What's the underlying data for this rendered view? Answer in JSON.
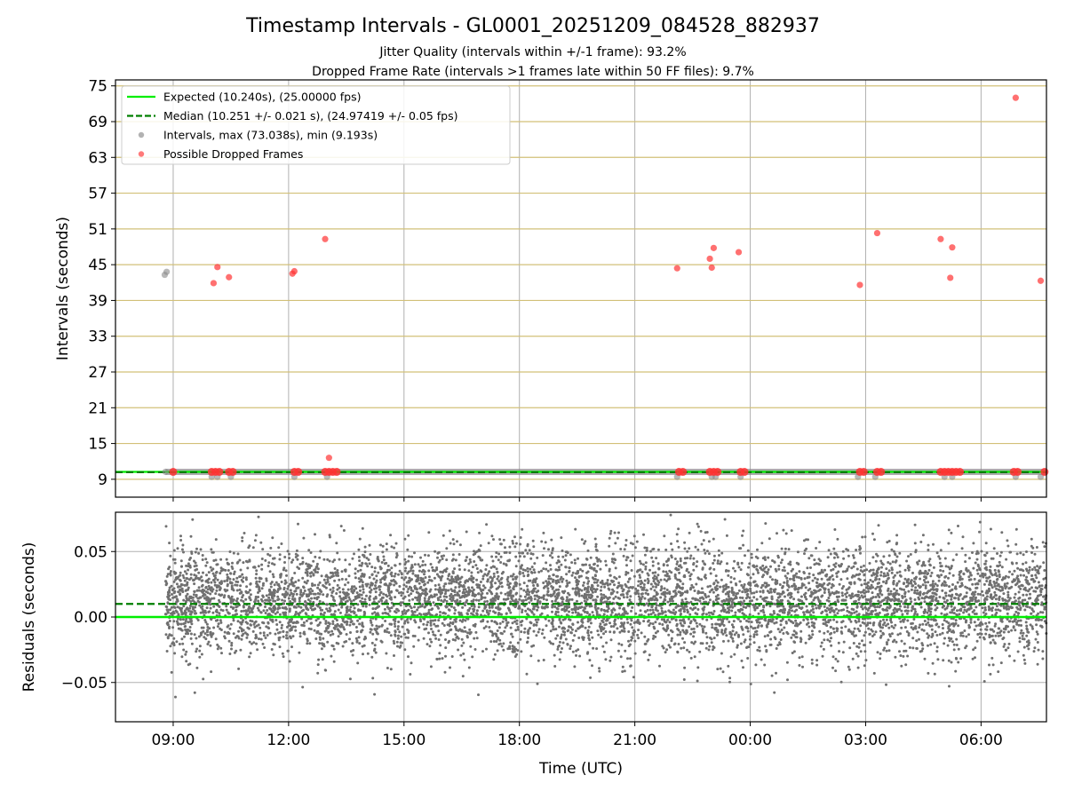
{
  "page": {
    "title": "Timestamp Intervals - GL0001_20251209_084528_882937",
    "subtitle_1": "Jitter Quality (intervals within +/-1 frame): 93.2%",
    "subtitle_2": "Dropped Frame Rate (intervals >1 frames late within 50 FF files): 9.7%"
  },
  "colors": {
    "expected": "#00ee00",
    "median": "#007f00",
    "intervals": "#888888",
    "dropped": "#ff3333",
    "residuals": "#707070",
    "grid": "#b0b0b0",
    "hgrid_top": "#d2c078"
  },
  "chart_data": [
    {
      "type": "scatter",
      "panel": "intervals",
      "ylabel": "Intervals (seconds)",
      "xlim_hours": [
        7.5,
        31.7
      ],
      "ylim": [
        6,
        76
      ],
      "y_ticks": [
        9,
        15,
        21,
        27,
        33,
        39,
        45,
        51,
        57,
        63,
        69,
        75
      ],
      "y_tick_labels": [
        "9",
        "15",
        "21",
        "27",
        "33",
        "39",
        "45",
        "51",
        "57",
        "63",
        "69",
        "75"
      ],
      "grid": true,
      "legend_location": "top-left",
      "legend": [
        {
          "label": "Expected (10.240s), (25.00000 fps)",
          "style": "solid-line",
          "color_key": "expected"
        },
        {
          "label": "Median (10.251 +/- 0.021 s), (24.97419 +/- 0.05 fps)",
          "style": "dashed-line",
          "color_key": "median"
        },
        {
          "label": "Intervals, max (73.038s), min (9.193s)",
          "style": "marker",
          "color_key": "intervals"
        },
        {
          "label": "Possible Dropped Frames",
          "style": "marker",
          "color_key": "dropped"
        }
      ],
      "expected_interval": 10.24,
      "median_interval": 10.251,
      "interval_range_hours": [
        8.8,
        31.7
      ],
      "interval_baseline": 10.24,
      "outlier_intervals": [
        {
          "t": 8.78,
          "y": 43.3
        },
        {
          "t": 8.83,
          "y": 43.8
        },
        {
          "t": 8.8,
          "y": 10.25
        },
        {
          "t": 10.0,
          "y": 9.4
        },
        {
          "t": 10.15,
          "y": 9.4
        },
        {
          "t": 10.5,
          "y": 9.4
        },
        {
          "t": 12.15,
          "y": 9.4
        },
        {
          "t": 13.0,
          "y": 9.4
        },
        {
          "t": 22.1,
          "y": 9.4
        },
        {
          "t": 23.0,
          "y": 9.4
        },
        {
          "t": 23.1,
          "y": 9.4
        },
        {
          "t": 23.75,
          "y": 9.4
        },
        {
          "t": 26.8,
          "y": 9.4
        },
        {
          "t": 27.25,
          "y": 9.4
        },
        {
          "t": 29.05,
          "y": 9.4
        },
        {
          "t": 29.25,
          "y": 9.4
        },
        {
          "t": 30.9,
          "y": 9.4
        },
        {
          "t": 31.55,
          "y": 9.4
        }
      ],
      "dropped_frames": [
        {
          "t": 9.0,
          "y": 10.24
        },
        {
          "t": 10.05,
          "y": 41.9
        },
        {
          "t": 10.15,
          "y": 44.6
        },
        {
          "t": 10.45,
          "y": 42.9
        },
        {
          "t": 12.1,
          "y": 43.5
        },
        {
          "t": 12.15,
          "y": 43.9
        },
        {
          "t": 12.95,
          "y": 49.3
        },
        {
          "t": 13.05,
          "y": 12.6
        },
        {
          "t": 22.1,
          "y": 44.4
        },
        {
          "t": 22.95,
          "y": 46.0
        },
        {
          "t": 23.0,
          "y": 44.5
        },
        {
          "t": 23.05,
          "y": 47.8
        },
        {
          "t": 23.7,
          "y": 47.1
        },
        {
          "t": 26.85,
          "y": 41.6
        },
        {
          "t": 27.3,
          "y": 50.3
        },
        {
          "t": 28.95,
          "y": 49.3
        },
        {
          "t": 29.2,
          "y": 42.8
        },
        {
          "t": 29.25,
          "y": 47.9
        },
        {
          "t": 30.9,
          "y": 73.0
        },
        {
          "t": 31.55,
          "y": 42.3
        },
        {
          "t": 10.0,
          "y": 10.24
        },
        {
          "t": 10.1,
          "y": 10.24
        },
        {
          "t": 10.2,
          "y": 10.24
        },
        {
          "t": 10.45,
          "y": 10.24
        },
        {
          "t": 10.55,
          "y": 10.24
        },
        {
          "t": 12.15,
          "y": 10.24
        },
        {
          "t": 12.25,
          "y": 10.24
        },
        {
          "t": 12.95,
          "y": 10.24
        },
        {
          "t": 13.05,
          "y": 10.24
        },
        {
          "t": 13.15,
          "y": 10.24
        },
        {
          "t": 13.25,
          "y": 10.24
        },
        {
          "t": 22.15,
          "y": 10.24
        },
        {
          "t": 22.25,
          "y": 10.24
        },
        {
          "t": 22.95,
          "y": 10.24
        },
        {
          "t": 23.05,
          "y": 10.24
        },
        {
          "t": 23.15,
          "y": 10.24
        },
        {
          "t": 23.75,
          "y": 10.24
        },
        {
          "t": 23.85,
          "y": 10.24
        },
        {
          "t": 26.85,
          "y": 10.24
        },
        {
          "t": 26.95,
          "y": 10.24
        },
        {
          "t": 27.3,
          "y": 10.24
        },
        {
          "t": 27.4,
          "y": 10.24
        },
        {
          "t": 28.95,
          "y": 10.24
        },
        {
          "t": 29.05,
          "y": 10.24
        },
        {
          "t": 29.15,
          "y": 10.24
        },
        {
          "t": 29.25,
          "y": 10.24
        },
        {
          "t": 29.35,
          "y": 10.24
        },
        {
          "t": 29.45,
          "y": 10.24
        },
        {
          "t": 30.85,
          "y": 10.24
        },
        {
          "t": 30.95,
          "y": 10.24
        },
        {
          "t": 31.65,
          "y": 10.24
        }
      ]
    },
    {
      "type": "scatter",
      "panel": "residuals",
      "ylabel": "Residuals (seconds)",
      "xlabel": "Time (UTC)",
      "xlim_hours": [
        7.5,
        31.7
      ],
      "ylim": [
        -0.08,
        0.08
      ],
      "y_ticks": [
        -0.05,
        0.0,
        0.05
      ],
      "y_tick_labels": [
        "−0.05",
        "0.00",
        "0.05"
      ],
      "x_ticks_hours": [
        9,
        12,
        15,
        18,
        21,
        24,
        27,
        30
      ],
      "x_tick_labels": [
        "09:00",
        "12:00",
        "15:00",
        "18:00",
        "21:00",
        "00:00",
        "03:00",
        "06:00"
      ],
      "grid": true,
      "expected_residual": 0.0,
      "median_residual": 0.01,
      "residual_center": 0.012,
      "residual_spread": 0.021,
      "residual_point_count": 6800
    }
  ]
}
